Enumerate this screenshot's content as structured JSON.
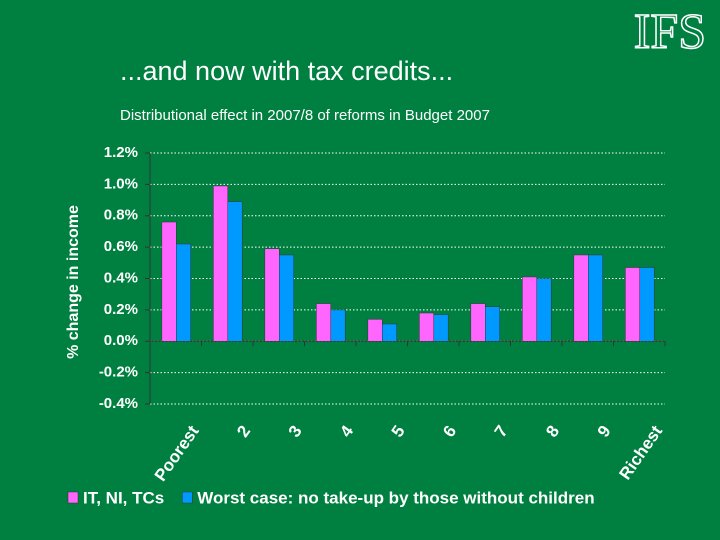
{
  "logo": "IFS",
  "chart_data": {
    "type": "bar",
    "title": "...and now with tax credits...",
    "subtitle": "Distributional effect in 2007/8 of reforms in Budget 2007",
    "y_label": "% change in income",
    "categories": [
      "Poorest",
      "2",
      "3",
      "4",
      "5",
      "6",
      "7",
      "8",
      "9",
      "Richest"
    ],
    "series": [
      {
        "name": "IT, NI, TCs",
        "color": "#ff66ff",
        "values": [
          0.76,
          0.99,
          0.59,
          0.24,
          0.14,
          0.18,
          0.24,
          0.41,
          0.55,
          0.47
        ]
      },
      {
        "name": "Worst case: no take-up by those without children",
        "color": "#0099ff",
        "values": [
          0.62,
          0.89,
          0.55,
          0.2,
          0.11,
          0.17,
          0.22,
          0.4,
          0.55,
          0.47
        ]
      }
    ],
    "ylim": [
      -0.4,
      1.2
    ],
    "yticks": [
      {
        "value": -0.4,
        "label": "-0.4%"
      },
      {
        "value": -0.2,
        "label": "-0.2%"
      },
      {
        "value": 0,
        "label": "0.0%"
      },
      {
        "value": 0.2,
        "label": "0.2%"
      },
      {
        "value": 0.4,
        "label": "0.4%"
      },
      {
        "value": 0.6,
        "label": "0.6%"
      },
      {
        "value": 0.8,
        "label": "0.8%"
      },
      {
        "value": 1.0,
        "label": "1.0%"
      },
      {
        "value": 1.2,
        "label": "1.2%"
      }
    ],
    "grid": true,
    "legend": "bottom"
  }
}
